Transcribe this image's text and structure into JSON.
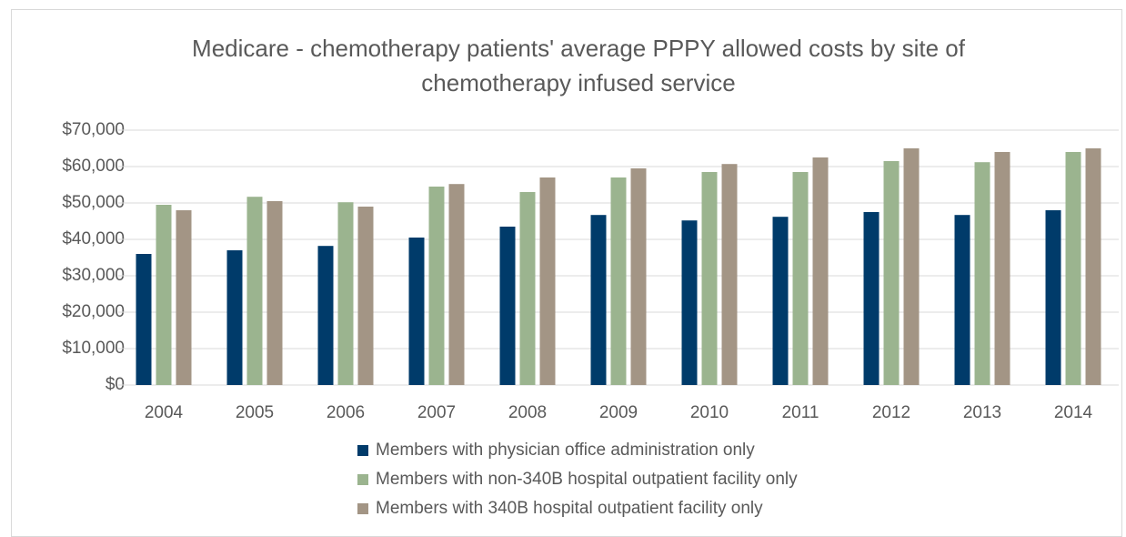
{
  "chart_data": {
    "type": "bar",
    "title": "Medicare - chemotherapy patients' average PPPY allowed costs by site of chemotherapy infused service",
    "categories": [
      "2004",
      "2005",
      "2006",
      "2007",
      "2008",
      "2009",
      "2010",
      "2011",
      "2012",
      "2013",
      "2014"
    ],
    "series": [
      {
        "name": "Members with physician office administration only",
        "color": "#003b6a",
        "values": [
          36000,
          37000,
          38200,
          40500,
          43500,
          46700,
          45200,
          46200,
          47500,
          46700,
          48000
        ]
      },
      {
        "name": "Members with non-340B hospital outpatient facility only",
        "color": "#9bb48f",
        "values": [
          49500,
          51700,
          50200,
          54500,
          53000,
          57000,
          58500,
          58500,
          61500,
          61200,
          64000
        ]
      },
      {
        "name": "Members with 340B hospital outpatient facility only",
        "color": "#a39585",
        "values": [
          48000,
          50500,
          49000,
          55200,
          57000,
          59500,
          60700,
          62500,
          65000,
          64000,
          65000
        ]
      }
    ],
    "ylim": [
      0,
      70000
    ],
    "yticks": [
      {
        "value": 0,
        "label": "$0"
      },
      {
        "value": 10000,
        "label": "$10,000"
      },
      {
        "value": 20000,
        "label": "$20,000"
      },
      {
        "value": 30000,
        "label": "$30,000"
      },
      {
        "value": 40000,
        "label": "$40,000"
      },
      {
        "value": 50000,
        "label": "$50,000"
      },
      {
        "value": 60000,
        "label": "$60,000"
      },
      {
        "value": 70000,
        "label": "$70,000"
      }
    ],
    "grid": true,
    "legend": "bottom"
  }
}
